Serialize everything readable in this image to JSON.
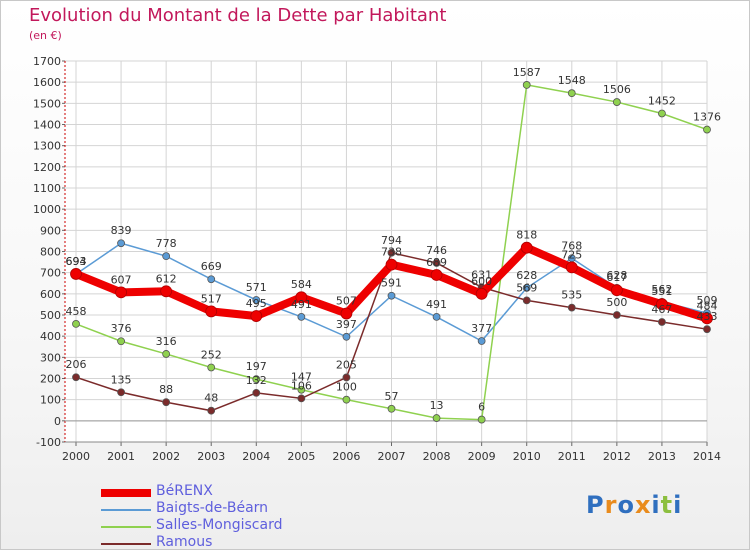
{
  "title": "Evolution du Montant de la Dette par Habitant",
  "subtitle": "(en €)",
  "logo": {
    "letters": [
      "P",
      "r",
      "o",
      "x",
      "i",
      "t",
      "i"
    ],
    "colors": [
      "#2f6fbf",
      "#e98b1c",
      "#2f6fbf",
      "#e98b1c",
      "#2f6fbf",
      "#8cbf3f",
      "#2f6fbf"
    ]
  },
  "chart_data": {
    "type": "line",
    "categories": [
      "2000",
      "2001",
      "2002",
      "2003",
      "2004",
      "2005",
      "2006",
      "2007",
      "2008",
      "2009",
      "2010",
      "2011",
      "2012",
      "2013",
      "2014"
    ],
    "ylim": [
      -100,
      1700
    ],
    "yticks": [
      -100,
      0,
      100,
      200,
      300,
      400,
      500,
      600,
      700,
      800,
      900,
      1000,
      1100,
      1200,
      1300,
      1400,
      1500,
      1600,
      1700
    ],
    "grid": true,
    "legend_position": "bottom-left",
    "series": [
      {
        "name": "BéRENX",
        "color": "#ee0000",
        "thick": true,
        "values": [
          694,
          607,
          612,
          517,
          495,
          584,
          507,
          738,
          689,
          600,
          818,
          725,
          617,
          551,
          484
        ],
        "labels": [
          "694",
          "607",
          "612",
          "517",
          "495",
          "584",
          "507",
          "738",
          "689",
          "600",
          "818",
          "725",
          "617",
          "551",
          "484"
        ]
      },
      {
        "name": "Baigts-de-Béarn",
        "color": "#5b9bd5",
        "thick": false,
        "values": [
          693,
          839,
          778,
          669,
          571,
          491,
          397,
          591,
          491,
          377,
          628,
          768,
          628,
          562,
          509
        ],
        "labels": [
          "693",
          "839",
          "778",
          "669",
          "571",
          "491",
          "397",
          "591",
          "491",
          "377",
          "628",
          "768",
          "628",
          "562",
          "509"
        ]
      },
      {
        "name": "Salles-Mongiscard",
        "color": "#8fd14f",
        "thick": false,
        "values": [
          458,
          376,
          316,
          252,
          197,
          147,
          100,
          57,
          13,
          6,
          1587,
          1548,
          1506,
          1452,
          1376
        ],
        "labels": [
          "458",
          "376",
          "316",
          "252",
          "197",
          "147",
          "100",
          "57",
          "13",
          "6",
          "1587",
          "1548",
          "1506",
          "1452",
          "1376"
        ]
      },
      {
        "name": "Ramous",
        "color": "#7b2b2b",
        "thick": false,
        "values": [
          206,
          135,
          88,
          48,
          132,
          106,
          205,
          794,
          746,
          631,
          569,
          535,
          500,
          467,
          433
        ],
        "labels": [
          "206",
          "135",
          "88",
          "48",
          "132",
          "106",
          "205",
          "794",
          "746",
          "631",
          "569",
          "535",
          "500",
          "467",
          "433"
        ]
      }
    ]
  }
}
